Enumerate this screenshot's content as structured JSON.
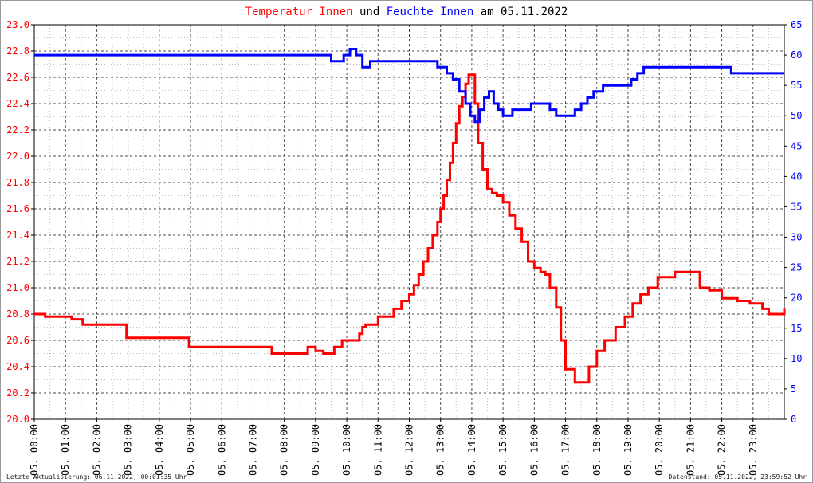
{
  "title": {
    "part1": "Temperatur Innen",
    "part2": " und ",
    "part3": "Feuchte Innen",
    "part4": " am 05.11.2022",
    "color1": "#ff0000",
    "color2": "#000000",
    "color3": "#0000ff"
  },
  "footer": {
    "left": "Letzte Aktualisierung: 06.11.2022, 00:01:35 Uhr",
    "right": "Datenstand: 05.11.2022, 23:59:52 Uhr"
  },
  "chart_data": {
    "type": "line",
    "x_unit": "hour of day",
    "xlim": [
      0,
      24
    ],
    "x_ticks": [
      "05. 00:00",
      "05. 01:00",
      "05. 02:00",
      "05. 03:00",
      "05. 04:00",
      "05. 05:00",
      "05. 06:00",
      "05. 07:00",
      "05. 08:00",
      "05. 09:00",
      "05. 10:00",
      "05. 11:00",
      "05. 12:00",
      "05. 13:00",
      "05. 14:00",
      "05. 15:00",
      "05. 16:00",
      "05. 17:00",
      "05. 18:00",
      "05. 19:00",
      "05. 20:00",
      "05. 21:00",
      "05. 22:00",
      "05. 23:00"
    ],
    "y_left": {
      "ylim": [
        20.0,
        23.0
      ],
      "ticks": [
        "20.0",
        "20.2",
        "20.4",
        "20.6",
        "20.8",
        "21.0",
        "21.2",
        "21.4",
        "21.6",
        "21.8",
        "22.0",
        "22.2",
        "22.4",
        "22.6",
        "22.8",
        "23.0"
      ],
      "color": "#ff0000"
    },
    "y_right": {
      "ylim": [
        0,
        65
      ],
      "ticks": [
        "0",
        "5",
        "10",
        "15",
        "20",
        "25",
        "30",
        "35",
        "40",
        "45",
        "50",
        "55",
        "60",
        "65"
      ],
      "color": "#0000ff"
    },
    "grid": true,
    "series": [
      {
        "name": "Temperatur Innen",
        "axis": "left",
        "color": "#ff0000",
        "x": [
          0,
          0.35,
          1.2,
          1.55,
          2.55,
          2.95,
          4.6,
          4.95,
          6.5,
          6.85,
          7.6,
          8.1,
          8.75,
          9.0,
          9.25,
          9.6,
          9.85,
          10.15,
          10.4,
          10.5,
          10.6,
          11.0,
          11.25,
          11.5,
          11.75,
          12.0,
          12.15,
          12.3,
          12.45,
          12.6,
          12.75,
          12.9,
          13.0,
          13.1,
          13.2,
          13.3,
          13.4,
          13.5,
          13.6,
          13.7,
          13.8,
          13.9,
          14.0,
          14.1,
          14.2,
          14.35,
          14.5,
          14.65,
          14.8,
          15.0,
          15.2,
          15.4,
          15.6,
          15.8,
          16.0,
          16.2,
          16.35,
          16.5,
          16.7,
          16.85,
          17.0,
          17.3,
          17.5,
          17.75,
          18.0,
          18.25,
          18.6,
          18.9,
          19.15,
          19.4,
          19.65,
          19.95,
          20.5,
          20.8,
          21.3,
          21.6,
          22.0,
          22.5,
          22.9,
          23.3,
          23.5,
          23.8,
          24.0
        ],
        "y": [
          20.8,
          20.78,
          20.76,
          20.72,
          20.72,
          20.62,
          20.62,
          20.55,
          20.55,
          20.55,
          20.5,
          20.5,
          20.55,
          20.52,
          20.5,
          20.55,
          20.6,
          20.6,
          20.65,
          20.7,
          20.72,
          20.78,
          20.78,
          20.84,
          20.9,
          20.95,
          21.02,
          21.1,
          21.2,
          21.3,
          21.4,
          21.5,
          21.6,
          21.7,
          21.82,
          21.95,
          22.1,
          22.25,
          22.38,
          22.45,
          22.55,
          22.62,
          22.62,
          22.4,
          22.1,
          21.9,
          21.75,
          21.72,
          21.7,
          21.65,
          21.55,
          21.45,
          21.35,
          21.2,
          21.15,
          21.12,
          21.1,
          21.0,
          20.85,
          20.6,
          20.38,
          20.28,
          20.28,
          20.4,
          20.52,
          20.6,
          20.7,
          20.78,
          20.88,
          20.95,
          21.0,
          21.08,
          21.12,
          21.12,
          21.0,
          20.98,
          20.92,
          20.9,
          20.88,
          20.84,
          20.8,
          20.8,
          20.84
        ]
      },
      {
        "name": "Feuchte Innen",
        "axis": "right",
        "color": "#0000ff",
        "x": [
          0,
          3,
          6,
          8.75,
          9.5,
          9.9,
          10.1,
          10.3,
          10.5,
          10.75,
          11.0,
          12.0,
          12.9,
          13.2,
          13.4,
          13.6,
          13.8,
          13.95,
          14.1,
          14.25,
          14.4,
          14.55,
          14.7,
          14.85,
          15.0,
          15.3,
          15.6,
          15.9,
          16.2,
          16.5,
          16.7,
          16.9,
          17.1,
          17.3,
          17.5,
          17.7,
          17.9,
          18.2,
          18.6,
          18.9,
          19.1,
          19.3,
          19.5,
          20.0,
          21.0,
          22.0,
          22.3,
          23.0,
          24.0
        ],
        "y": [
          60,
          60,
          60,
          60,
          59,
          60,
          61,
          60,
          58,
          59,
          59,
          59,
          58,
          57,
          56,
          54,
          52,
          50,
          49,
          51,
          53,
          54,
          52,
          51,
          50,
          51,
          51,
          52,
          52,
          51,
          50,
          50,
          50,
          51,
          52,
          53,
          54,
          55,
          55,
          55,
          56,
          57,
          58,
          58,
          58,
          58,
          57,
          57,
          57
        ]
      }
    ]
  }
}
